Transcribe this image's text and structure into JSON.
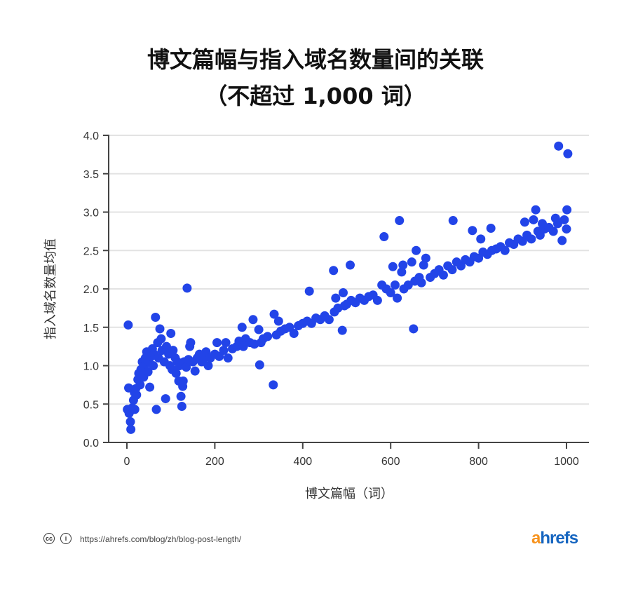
{
  "chart_data": {
    "type": "scatter",
    "title": "博文篇幅与指入域名数量间的关联",
    "subtitle": "（不超过 1,000 词）",
    "xlabel": "博文篇幅（词）",
    "ylabel": "指入域名数量均值",
    "xlim": [
      0,
      1000
    ],
    "ylim": [
      0,
      4
    ],
    "xticks": [
      "0",
      "200",
      "400",
      "600",
      "800",
      "1000"
    ],
    "yticks": [
      "0.0",
      "0.5",
      "1.0",
      "1.5",
      "2.0",
      "2.5",
      "3.0",
      "3.5",
      "4.0"
    ],
    "grid": true,
    "color": "#2244e8",
    "points": [
      [
        1,
        0.43
      ],
      [
        3,
        1.53
      ],
      [
        4,
        0.71
      ],
      [
        5,
        0.38
      ],
      [
        8,
        0.27
      ],
      [
        9,
        0.17
      ],
      [
        10,
        0.42
      ],
      [
        12,
        0.45
      ],
      [
        15,
        0.55
      ],
      [
        17,
        0.65
      ],
      [
        18,
        0.43
      ],
      [
        20,
        0.7
      ],
      [
        22,
        0.62
      ],
      [
        25,
        0.82
      ],
      [
        27,
        0.9
      ],
      [
        30,
        0.75
      ],
      [
        32,
        0.95
      ],
      [
        35,
        1.05
      ],
      [
        38,
        0.85
      ],
      [
        40,
        1.0
      ],
      [
        42,
        1.1
      ],
      [
        45,
        1.18
      ],
      [
        48,
        0.92
      ],
      [
        50,
        1.05
      ],
      [
        52,
        0.72
      ],
      [
        55,
        1.12
      ],
      [
        58,
        1.22
      ],
      [
        60,
        1.0
      ],
      [
        62,
        1.15
      ],
      [
        65,
        1.63
      ],
      [
        67,
        0.43
      ],
      [
        70,
        1.3
      ],
      [
        72,
        1.1
      ],
      [
        75,
        1.48
      ],
      [
        78,
        1.35
      ],
      [
        80,
        1.2
      ],
      [
        85,
        1.05
      ],
      [
        88,
        0.57
      ],
      [
        90,
        1.25
      ],
      [
        95,
        1.15
      ],
      [
        98,
        1.0
      ],
      [
        100,
        1.42
      ],
      [
        103,
        0.95
      ],
      [
        105,
        1.2
      ],
      [
        110,
        1.1
      ],
      [
        112,
        0.9
      ],
      [
        115,
        1.05
      ],
      [
        118,
        0.8
      ],
      [
        120,
        1.0
      ],
      [
        123,
        0.6
      ],
      [
        125,
        0.47
      ],
      [
        127,
        0.73
      ],
      [
        128,
        0.8
      ],
      [
        130,
        1.05
      ],
      [
        135,
        0.98
      ],
      [
        137,
        2.01
      ],
      [
        140,
        1.08
      ],
      [
        143,
        1.25
      ],
      [
        145,
        1.3
      ],
      [
        150,
        1.05
      ],
      [
        155,
        0.93
      ],
      [
        160,
        1.1
      ],
      [
        165,
        1.15
      ],
      [
        170,
        1.05
      ],
      [
        175,
        1.1
      ],
      [
        180,
        1.18
      ],
      [
        185,
        1.0
      ],
      [
        190,
        1.1
      ],
      [
        200,
        1.15
      ],
      [
        205,
        1.3
      ],
      [
        210,
        1.12
      ],
      [
        220,
        1.2
      ],
      [
        225,
        1.3
      ],
      [
        230,
        1.1
      ],
      [
        240,
        1.22
      ],
      [
        250,
        1.25
      ],
      [
        255,
        1.32
      ],
      [
        262,
        1.5
      ],
      [
        265,
        1.25
      ],
      [
        270,
        1.35
      ],
      [
        280,
        1.3
      ],
      [
        287,
        1.6
      ],
      [
        290,
        1.28
      ],
      [
        300,
        1.47
      ],
      [
        302,
        1.01
      ],
      [
        305,
        1.3
      ],
      [
        310,
        1.35
      ],
      [
        320,
        1.38
      ],
      [
        333,
        0.75
      ],
      [
        335,
        1.67
      ],
      [
        340,
        1.4
      ],
      [
        345,
        1.58
      ],
      [
        350,
        1.45
      ],
      [
        360,
        1.48
      ],
      [
        370,
        1.5
      ],
      [
        380,
        1.42
      ],
      [
        390,
        1.52
      ],
      [
        400,
        1.55
      ],
      [
        410,
        1.58
      ],
      [
        415,
        1.97
      ],
      [
        420,
        1.55
      ],
      [
        430,
        1.62
      ],
      [
        440,
        1.6
      ],
      [
        450,
        1.65
      ],
      [
        460,
        1.6
      ],
      [
        470,
        2.24
      ],
      [
        472,
        1.7
      ],
      [
        475,
        1.88
      ],
      [
        480,
        1.75
      ],
      [
        490,
        1.46
      ],
      [
        492,
        1.95
      ],
      [
        495,
        1.78
      ],
      [
        500,
        1.8
      ],
      [
        508,
        2.31
      ],
      [
        510,
        1.85
      ],
      [
        520,
        1.82
      ],
      [
        530,
        1.88
      ],
      [
        540,
        1.85
      ],
      [
        550,
        1.9
      ],
      [
        560,
        1.92
      ],
      [
        570,
        1.85
      ],
      [
        580,
        2.05
      ],
      [
        585,
        2.68
      ],
      [
        590,
        2.0
      ],
      [
        600,
        1.95
      ],
      [
        605,
        2.29
      ],
      [
        610,
        2.05
      ],
      [
        615,
        1.88
      ],
      [
        620,
        2.89
      ],
      [
        625,
        2.22
      ],
      [
        628,
        2.31
      ],
      [
        630,
        2.0
      ],
      [
        640,
        2.05
      ],
      [
        648,
        2.35
      ],
      [
        652,
        1.48
      ],
      [
        655,
        2.1
      ],
      [
        658,
        2.5
      ],
      [
        665,
        2.15
      ],
      [
        670,
        2.08
      ],
      [
        675,
        2.31
      ],
      [
        680,
        2.4
      ],
      [
        690,
        2.15
      ],
      [
        700,
        2.2
      ],
      [
        710,
        2.25
      ],
      [
        720,
        2.18
      ],
      [
        730,
        2.3
      ],
      [
        740,
        2.25
      ],
      [
        742,
        2.89
      ],
      [
        750,
        2.35
      ],
      [
        760,
        2.3
      ],
      [
        770,
        2.38
      ],
      [
        780,
        2.35
      ],
      [
        786,
        2.76
      ],
      [
        790,
        2.42
      ],
      [
        800,
        2.4
      ],
      [
        805,
        2.65
      ],
      [
        810,
        2.48
      ],
      [
        820,
        2.45
      ],
      [
        828,
        2.79
      ],
      [
        830,
        2.5
      ],
      [
        840,
        2.52
      ],
      [
        850,
        2.55
      ],
      [
        860,
        2.5
      ],
      [
        870,
        2.6
      ],
      [
        880,
        2.58
      ],
      [
        890,
        2.65
      ],
      [
        900,
        2.62
      ],
      [
        905,
        2.87
      ],
      [
        910,
        2.7
      ],
      [
        920,
        2.65
      ],
      [
        925,
        2.9
      ],
      [
        930,
        3.03
      ],
      [
        935,
        2.75
      ],
      [
        940,
        2.7
      ],
      [
        945,
        2.85
      ],
      [
        950,
        2.78
      ],
      [
        960,
        2.8
      ],
      [
        970,
        2.75
      ],
      [
        975,
        2.92
      ],
      [
        980,
        2.85
      ],
      [
        982,
        3.86
      ],
      [
        990,
        2.63
      ],
      [
        995,
        2.9
      ],
      [
        1000,
        2.78
      ],
      [
        1001,
        3.03
      ],
      [
        1003,
        3.76
      ]
    ]
  },
  "footer": {
    "url": "https://ahrefs.com/blog/zh/blog-post-length/",
    "logo": "ahrefs",
    "logo_a": "#f7931e",
    "logo_rest": "#1565c0",
    "icons": [
      "cc-icon",
      "attribution-icon"
    ]
  }
}
